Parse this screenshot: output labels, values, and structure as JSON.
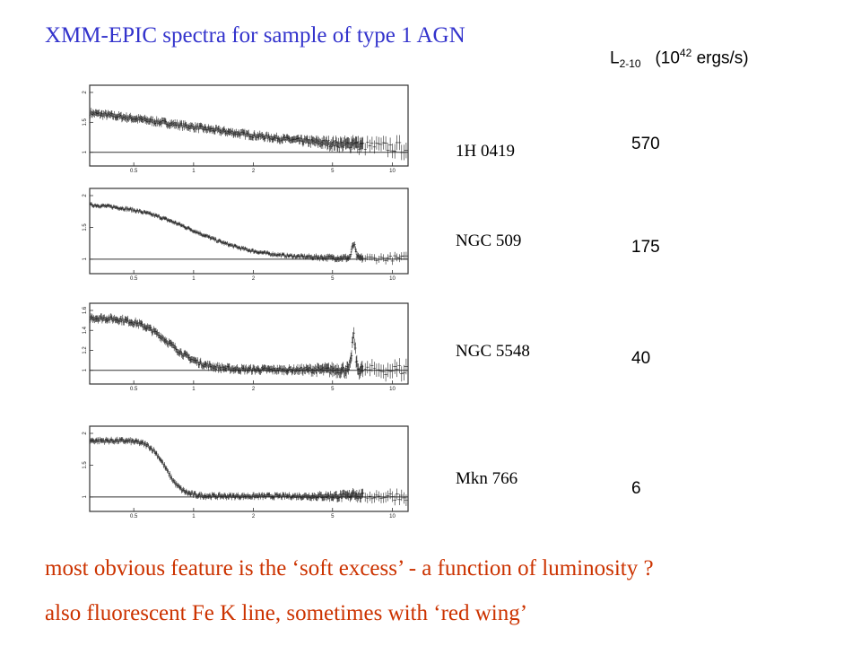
{
  "title": "XMM-EPIC spectra for sample of type 1 AGN",
  "luminosity_header": {
    "symbol": "L",
    "subscript": "2-10",
    "unit_prefix": "(10",
    "exponent": "42",
    "unit_suffix": "ergs/s)"
  },
  "sources": [
    {
      "name": "1H 0419",
      "luminosity": "570",
      "x_ticks": [
        "0.5",
        "1",
        "2",
        "5",
        "10"
      ],
      "y_ticks": [
        "1",
        "1.5",
        "2"
      ]
    },
    {
      "name": "NGC 509",
      "luminosity": "175",
      "x_ticks": [
        "0.5",
        "1",
        "2",
        "5",
        "10"
      ],
      "y_ticks": [
        "1",
        "1.5",
        "2"
      ]
    },
    {
      "name": "NGC 5548",
      "luminosity": "40",
      "x_ticks": [
        "0.5",
        "1",
        "2",
        "5",
        "10"
      ],
      "y_ticks": [
        "1",
        "1.2",
        "1.4",
        "1.6"
      ]
    },
    {
      "name": "Mkn 766",
      "luminosity": "6",
      "x_ticks": [
        "0.5",
        "1",
        "2",
        "5",
        "10"
      ],
      "y_ticks": [
        "1",
        "1.5",
        "2"
      ]
    }
  ],
  "notes": [
    "most obvious feature is the ‘soft excess’ - a function of luminosity ?",
    "also  fluorescent Fe K line, sometimes with ‘red wing’"
  ]
}
